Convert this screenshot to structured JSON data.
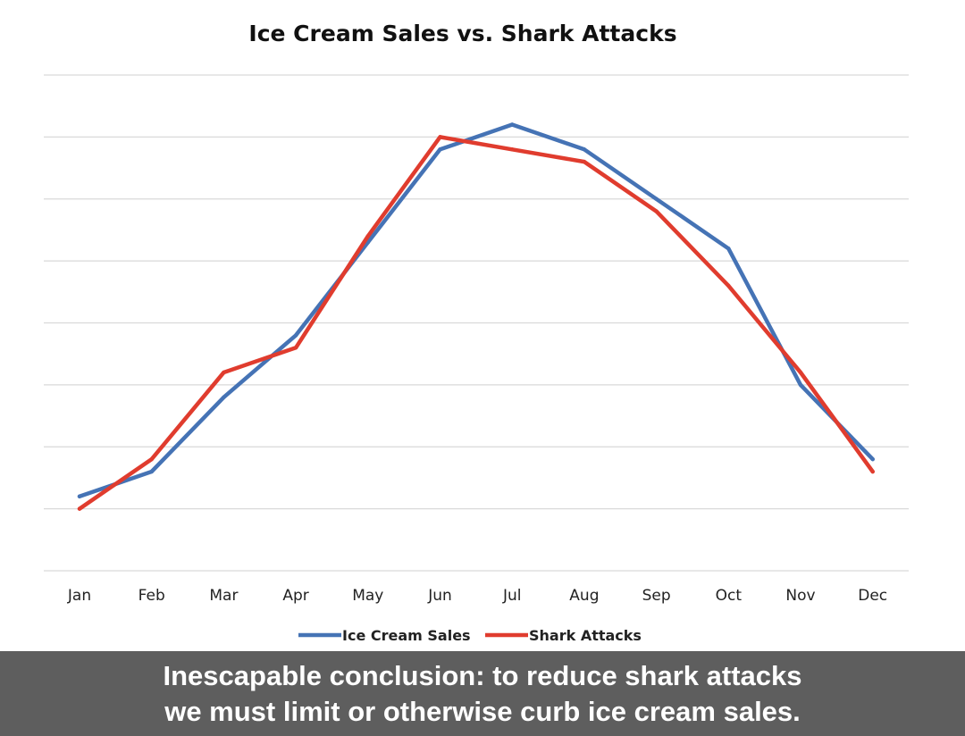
{
  "chart_data": {
    "type": "line",
    "title": "Ice Cream Sales vs. Shark Attacks",
    "xlabel": "",
    "ylabel": "",
    "categories": [
      "Jan",
      "Feb",
      "Mar",
      "Apr",
      "May",
      "Jun",
      "Jul",
      "Aug",
      "Sep",
      "Oct",
      "Nov",
      "Dec"
    ],
    "ylim": [
      0,
      8
    ],
    "y_tick_labels_shown": false,
    "grid": true,
    "legend_position": "bottom",
    "series": [
      {
        "name": "Ice Cream Sales",
        "color": "#4573b5",
        "values": [
          1.2,
          1.6,
          2.8,
          3.8,
          5.3,
          6.8,
          7.2,
          6.8,
          6.0,
          5.2,
          3.0,
          1.8
        ]
      },
      {
        "name": "Shark Attacks",
        "color": "#e03c2e",
        "values": [
          1.0,
          1.8,
          3.2,
          3.6,
          5.4,
          7.0,
          6.8,
          6.6,
          5.8,
          4.6,
          3.2,
          1.6
        ]
      }
    ]
  },
  "caption": {
    "line1": "Inescapable conclusion: to reduce shark attacks",
    "line2": "we must limit or otherwise curb ice cream sales."
  },
  "colors": {
    "caption_background": "#5e5e5e",
    "caption_text": "#ffffff"
  }
}
